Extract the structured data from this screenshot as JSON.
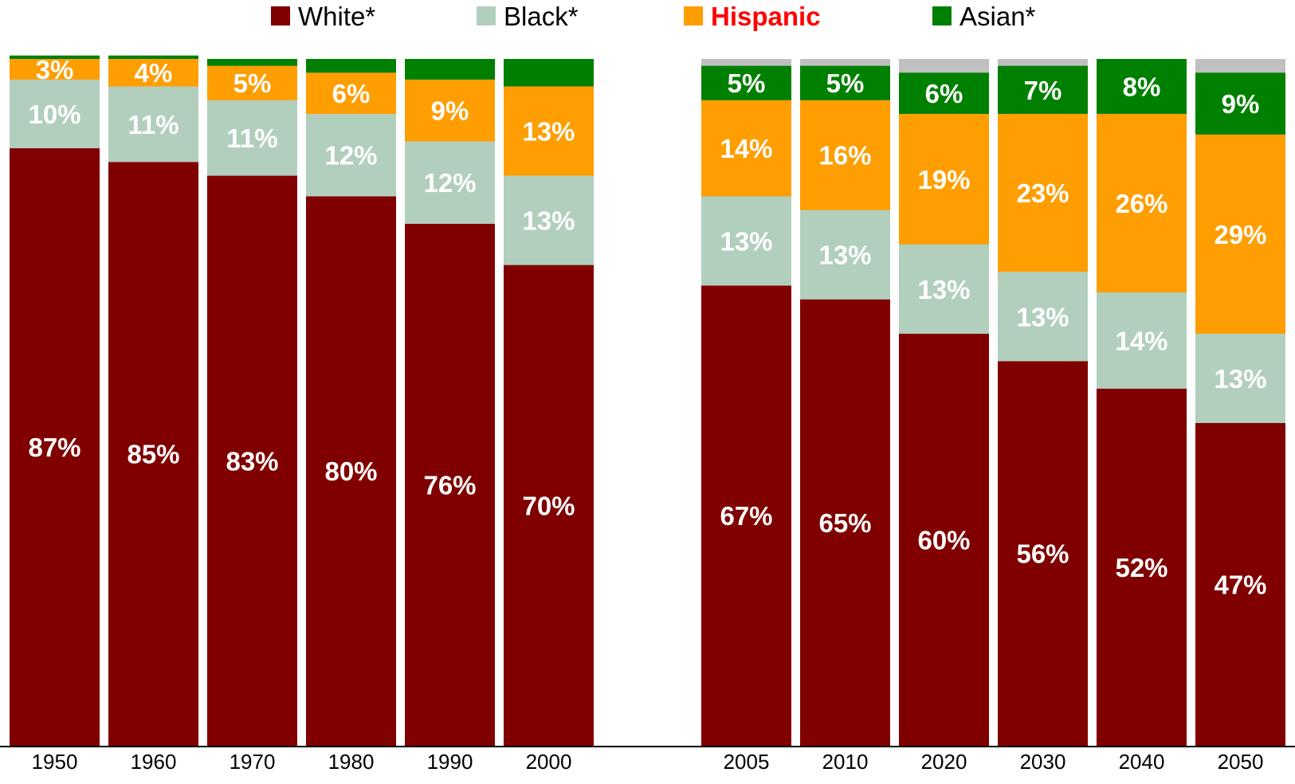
{
  "chart_data": {
    "type": "bar",
    "stacked": true,
    "categories": [
      "1950",
      "1960",
      "1970",
      "1980",
      "1990",
      "2000",
      "2005",
      "2010",
      "2020",
      "2030",
      "2040",
      "2050"
    ],
    "series": [
      {
        "name": "White*",
        "color": "#800000",
        "values": [
          87,
          85,
          83,
          80,
          76,
          70,
          67,
          65,
          60,
          56,
          52,
          47
        ],
        "labels": [
          "87%",
          "85%",
          "83%",
          "80%",
          "76%",
          "70%",
          "67%",
          "65%",
          "60%",
          "56%",
          "52%",
          "47%"
        ]
      },
      {
        "name": "Black*",
        "color": "#b2cfbe",
        "values": [
          10,
          11,
          11,
          12,
          12,
          13,
          13,
          13,
          13,
          13,
          14,
          13
        ],
        "labels": [
          "10%",
          "11%",
          "11%",
          "12%",
          "12%",
          "13%",
          "13%",
          "13%",
          "13%",
          "13%",
          "14%",
          "13%"
        ]
      },
      {
        "name": "Hispanic",
        "color": "#ff9e00",
        "legend_text_color": "#ff0000",
        "values": [
          3,
          4,
          5,
          6,
          9,
          13,
          14,
          16,
          19,
          23,
          26,
          29
        ],
        "labels": [
          "3%",
          "4%",
          "5%",
          "6%",
          "9%",
          "13%",
          "14%",
          "16%",
          "19%",
          "23%",
          "26%",
          "29%"
        ]
      },
      {
        "name": "Asian*",
        "color": "#008000",
        "values": [
          0.5,
          0.5,
          1,
          2,
          3,
          4,
          5,
          5,
          6,
          7,
          8,
          9
        ],
        "labels": [
          "",
          "",
          "",
          "",
          "",
          "",
          "5%",
          "5%",
          "6%",
          "7%",
          "8%",
          "9%"
        ]
      }
    ],
    "remainder_color": "#c0c0c0",
    "gap_after_index": 5,
    "ylim": [
      0,
      100
    ],
    "legend_position": "top",
    "grid": false,
    "xlabel": "",
    "ylabel": ""
  }
}
